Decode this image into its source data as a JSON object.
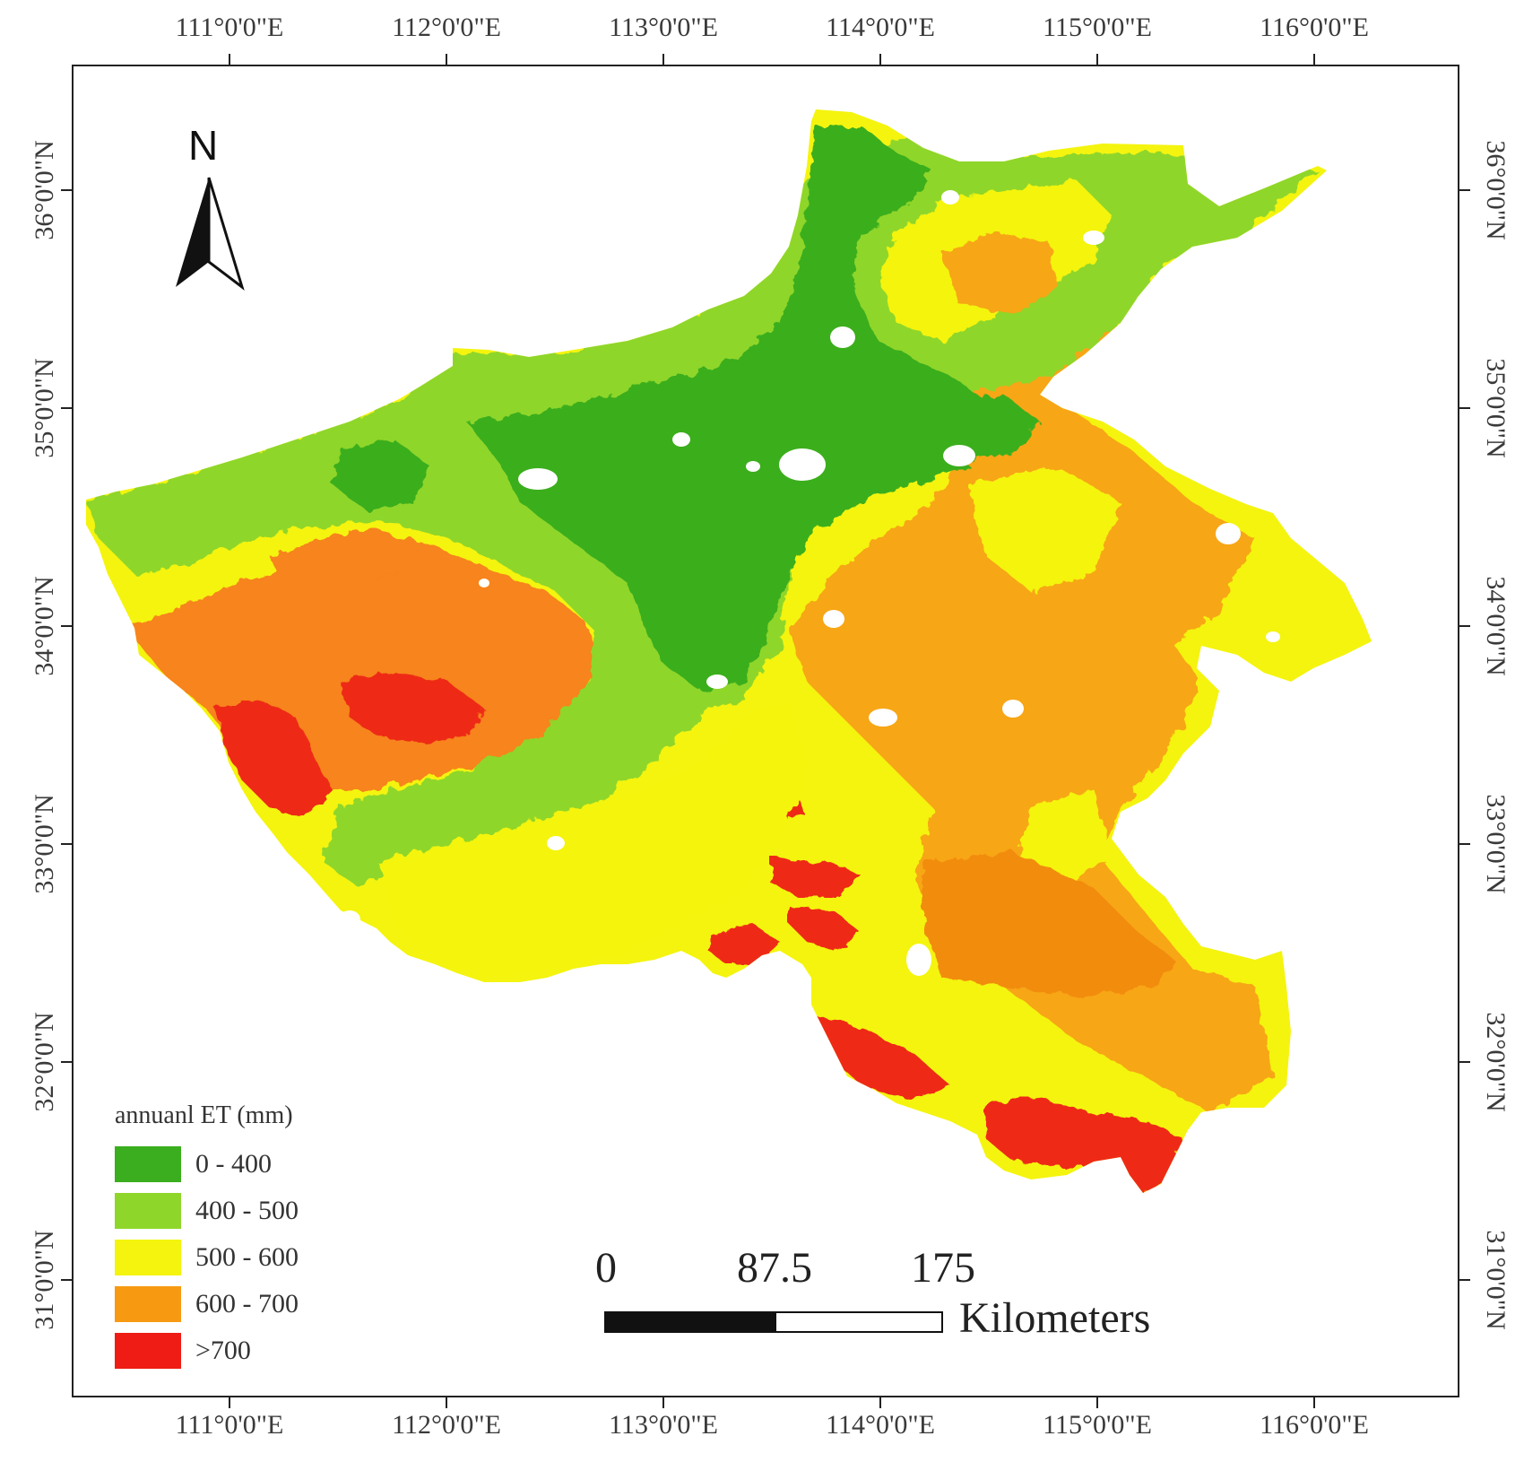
{
  "map": {
    "top_longitudes": [
      "111°0'0\"E",
      "112°0'0\"E",
      "113°0'0\"E",
      "114°0'0\"E",
      "115°0'0\"E",
      "116°0'0\"E"
    ],
    "bottom_longitudes": [
      "111°0'0\"E",
      "112°0'0\"E",
      "113°0'0\"E",
      "114°0'0\"E",
      "115°0'0\"E",
      "116°0'0\"E"
    ],
    "left_latitudes": [
      "36°0'0\"N",
      "35°0'0\"N",
      "34°0'0\"N",
      "33°0'0\"N",
      "32°0'0\"N",
      "31°0'0\"N"
    ],
    "right_latitudes": [
      "36°0'0\"N",
      "35°0'0\"N",
      "34°0'0\"N",
      "33°0'0\"N",
      "32°0'0\"N",
      "31°0'0\"N"
    ],
    "north_arrow_label": "N"
  },
  "legend": {
    "title": "annuanl ET (mm)",
    "items": [
      {
        "label": "0 - 400",
        "color": "#3aae1e"
      },
      {
        "label": "400 - 500",
        "color": "#8fd62a"
      },
      {
        "label": "500 - 600",
        "color": "#f4f40f"
      },
      {
        "label": "600 - 700",
        "color": "#f79a12"
      },
      {
        "label": ">700",
        "color": "#ee1c14"
      }
    ]
  },
  "scalebar": {
    "values": [
      "0",
      "87.5",
      "175"
    ],
    "unit": "Kilometers"
  }
}
